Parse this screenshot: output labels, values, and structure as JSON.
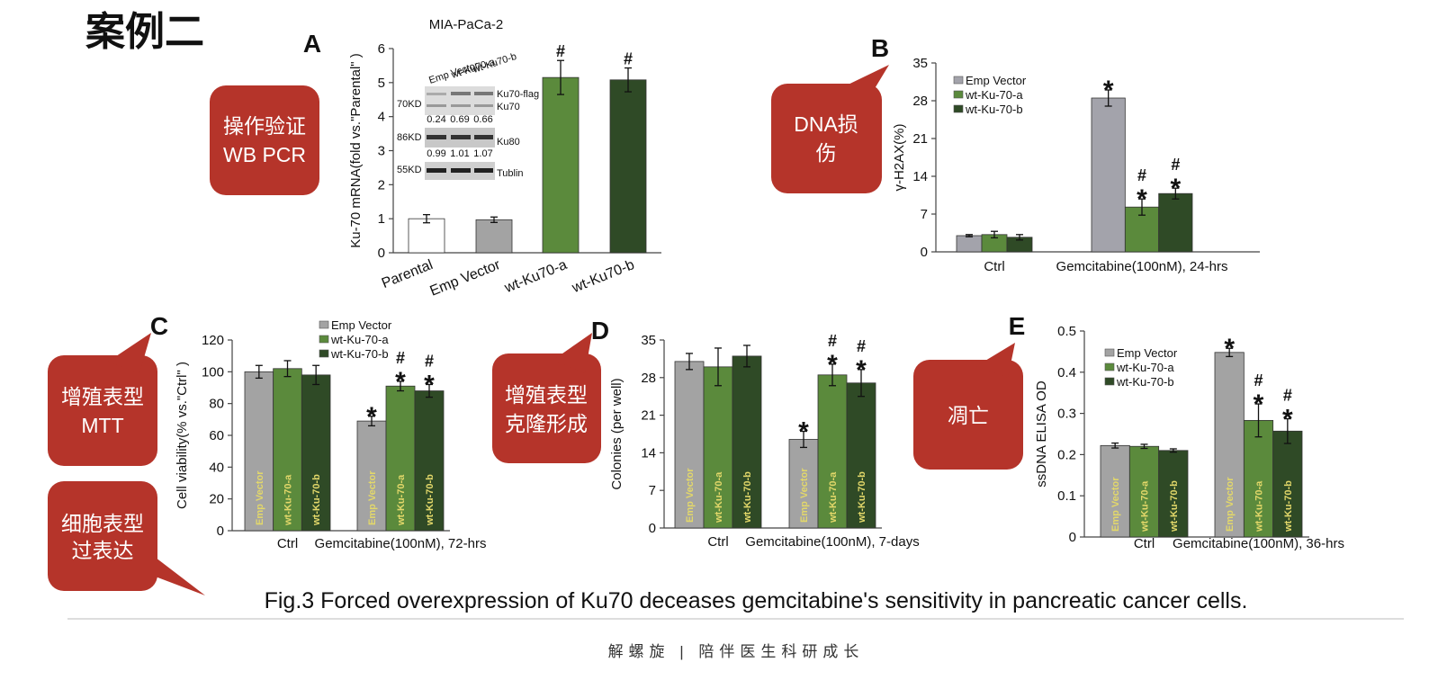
{
  "header": {
    "title": "案例二"
  },
  "callouts": [
    {
      "lines": [
        "操作验证",
        "WB PCR"
      ]
    },
    {
      "lines": [
        "DNA损",
        "伤"
      ]
    },
    {
      "lines": [
        "增殖表型",
        "MTT"
      ]
    },
    {
      "lines": [
        "增殖表型",
        "克隆形成"
      ]
    },
    {
      "lines": [
        "凋亡"
      ]
    },
    {
      "lines": [
        "细胞表型",
        "过表达"
      ]
    }
  ],
  "chart_data": [
    {
      "type": "bar",
      "panel": "A",
      "title": "MIA-PaCa-2",
      "ylabel": "Ku-70 mRNA(fold vs.\"Parental\" )",
      "categories": [
        "Parental",
        "Emp Vector",
        "wt-Ku70-a",
        "wt-Ku70-b"
      ],
      "values": [
        1.0,
        0.97,
        5.15,
        5.08
      ],
      "errors": [
        0.12,
        0.08,
        0.5,
        0.35
      ],
      "colors": [
        "#ffffff",
        "#a3a3a3",
        "#5b8a3c",
        "#2f4a26"
      ],
      "sig": [
        [],
        [],
        [
          "#"
        ],
        [
          "#"
        ]
      ],
      "ylim": [
        0,
        6
      ],
      "yticks": [
        0,
        1,
        2,
        3,
        4,
        5,
        6
      ],
      "inset": {
        "lanes": [
          "Emp Vector",
          "wt-Ku70-a",
          "wt-Ku70-b"
        ],
        "rows": [
          {
            "marker": "70KD",
            "bands": [
              "Ku70-flag",
              "Ku70"
            ],
            "densities": [
              0.24,
              0.69,
              0.66
            ]
          },
          {
            "marker": "86KD",
            "bands": [
              "Ku80"
            ],
            "densities": [
              0.99,
              1.01,
              1.07
            ]
          },
          {
            "marker": "55KD",
            "bands": [
              "Tublin"
            ]
          }
        ]
      }
    },
    {
      "type": "bar",
      "panel": "B",
      "ylabel": "γ-H2AX(%)",
      "legend": true,
      "inbar_labels": false,
      "categories": [
        "Ctrl",
        "Gemcitabine(100nM), 24-hrs"
      ],
      "series": [
        {
          "name": "Emp Vector",
          "color": "#a3a3ab",
          "values": [
            3.0,
            28.5
          ],
          "errors": [
            0.2,
            1.5
          ],
          "sig": [
            [],
            [
              "*"
            ]
          ]
        },
        {
          "name": "wt-Ku-70-a",
          "color": "#5b8a3c",
          "values": [
            3.2,
            8.3
          ],
          "errors": [
            0.6,
            1.5
          ],
          "sig": [
            [],
            [
              "*",
              "#"
            ]
          ]
        },
        {
          "name": "wt-Ku-70-b",
          "color": "#2f4a26",
          "values": [
            2.7,
            10.8
          ],
          "errors": [
            0.5,
            1.0
          ],
          "sig": [
            [],
            [
              "*",
              "#"
            ]
          ]
        }
      ],
      "ylim": [
        0,
        35
      ],
      "yticks": [
        0,
        7,
        14,
        21,
        28,
        35
      ]
    },
    {
      "type": "bar",
      "panel": "C",
      "ylabel": "Cell viability(% vs.\"Ctrl\" )",
      "legend": true,
      "inbar_labels": true,
      "categories": [
        "Ctrl",
        "Gemcitabine(100nM), 72-hrs"
      ],
      "series": [
        {
          "name": "Emp Vector",
          "color": "#a3a3a3",
          "values": [
            100,
            69
          ],
          "errors": [
            4,
            3
          ],
          "sig": [
            [],
            [
              "*"
            ]
          ]
        },
        {
          "name": "wt-Ku-70-a",
          "color": "#5b8a3c",
          "values": [
            102,
            91
          ],
          "errors": [
            5,
            3
          ],
          "sig": [
            [],
            [
              "*",
              "#"
            ]
          ]
        },
        {
          "name": "wt-Ku-70-b",
          "color": "#2f4a26",
          "values": [
            98,
            88
          ],
          "errors": [
            6,
            4
          ],
          "sig": [
            [],
            [
              "*",
              "#"
            ]
          ]
        }
      ],
      "ylim": [
        0,
        120
      ],
      "yticks": [
        0,
        20,
        40,
        60,
        80,
        100,
        120
      ]
    },
    {
      "type": "bar",
      "panel": "D",
      "ylabel": "Colonies (per well)",
      "legend": false,
      "inbar_labels": true,
      "categories": [
        "Ctrl",
        "Gemcitabine(100nM), 7-days"
      ],
      "series": [
        {
          "name": "Emp Vector",
          "color": "#a3a3a3",
          "values": [
            31,
            16.5
          ],
          "errors": [
            1.5,
            1.5
          ],
          "sig": [
            [],
            [
              "*"
            ]
          ]
        },
        {
          "name": "wt-Ku-70-a",
          "color": "#5b8a3c",
          "values": [
            30,
            28.5
          ],
          "errors": [
            3.5,
            2
          ],
          "sig": [
            [],
            [
              "*",
              "#"
            ]
          ]
        },
        {
          "name": "wt-Ku-70-b",
          "color": "#2f4a26",
          "values": [
            32,
            27
          ],
          "errors": [
            2,
            2.5
          ],
          "sig": [
            [],
            [
              "*",
              "#"
            ]
          ]
        }
      ],
      "ylim": [
        0,
        35
      ],
      "yticks": [
        0,
        7,
        14,
        21,
        28,
        35
      ]
    },
    {
      "type": "bar",
      "panel": "E",
      "ylabel": "ssDNA ELISA OD",
      "legend": true,
      "inbar_labels": true,
      "categories": [
        "Ctrl",
        "Gemcitabine(100nM), 36-hrs"
      ],
      "series": [
        {
          "name": "Emp Vector",
          "color": "#a3a3a3",
          "values": [
            0.222,
            0.448
          ],
          "errors": [
            0.006,
            0.01
          ],
          "sig": [
            [],
            [
              "*"
            ]
          ]
        },
        {
          "name": "wt-Ku-70-a",
          "color": "#5b8a3c",
          "values": [
            0.22,
            0.283
          ],
          "errors": [
            0.005,
            0.04
          ],
          "sig": [
            [],
            [
              "*",
              "#"
            ]
          ]
        },
        {
          "name": "wt-Ku-70-b",
          "color": "#2f4a26",
          "values": [
            0.21,
            0.257
          ],
          "errors": [
            0.004,
            0.03
          ],
          "sig": [
            [],
            [
              "*",
              "#"
            ]
          ]
        }
      ],
      "ylim": [
        0,
        0.5
      ],
      "yticks": [
        0,
        0.1,
        0.2,
        0.3,
        0.4,
        0.5
      ]
    }
  ],
  "caption": "Fig.3 Forced overexpression of Ku70 deceases gemcitabine's sensitivity in pancreatic cancer cells.",
  "footer": "解螺旋  |  陪伴医生科研成长"
}
